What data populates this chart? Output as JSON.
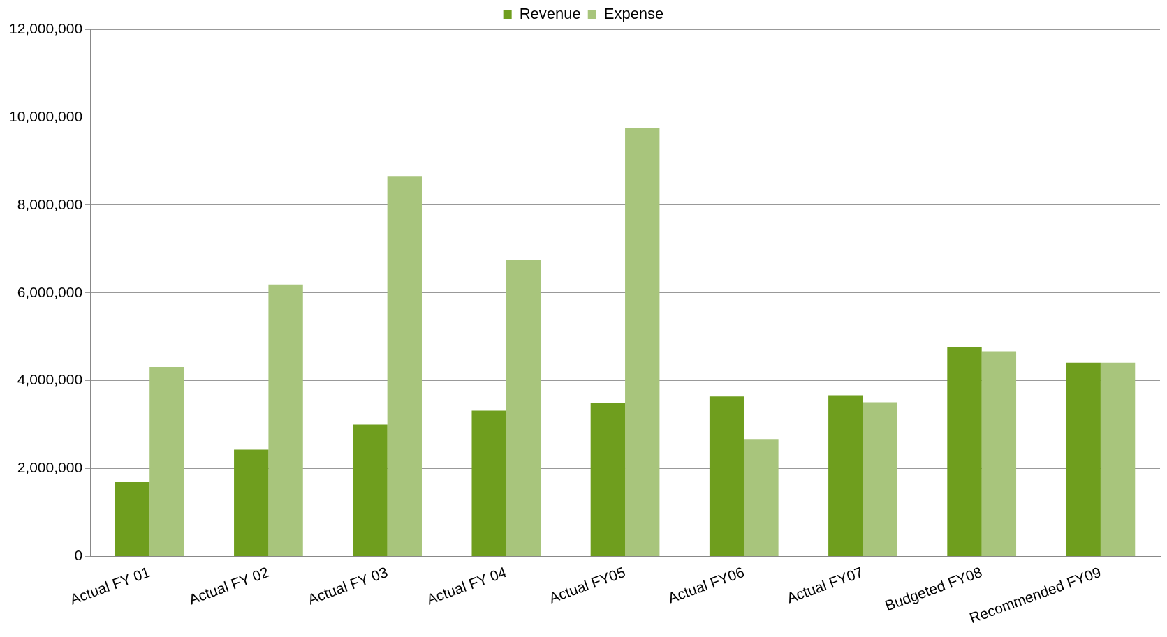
{
  "chart_data": {
    "type": "bar",
    "categories": [
      "Actual FY 01",
      "Actual FY 02",
      "Actual FY 03",
      "Actual FY 04",
      "Actual FY05",
      "Actual FY06",
      "Actual FY07",
      "Budgeted FY08",
      "Recommended FY09"
    ],
    "series": [
      {
        "name": "Revenue",
        "color": "#6f9e1e",
        "values": [
          1690000,
          2430000,
          3000000,
          3320000,
          3500000,
          3640000,
          3670000,
          4760000,
          4410000
        ]
      },
      {
        "name": "Expense",
        "color": "#a8c57c",
        "values": [
          4310000,
          6190000,
          8660000,
          6750000,
          9750000,
          2670000,
          3510000,
          4670000,
          4410000
        ]
      }
    ],
    "ylim": [
      0,
      12000000
    ],
    "yticks": [
      0,
      {
        "value": 2000000,
        "label": "2,000,000"
      },
      {
        "value": 4000000,
        "label": "4,000,000"
      },
      {
        "value": 6000000,
        "label": "6,000,000"
      },
      {
        "value": 8000000,
        "label": "8,000,000"
      },
      {
        "value": 10000000,
        "label": "10,000,000"
      },
      {
        "value": 12000000,
        "label": "12,000,000"
      }
    ],
    "grid": "y",
    "legend": "top"
  }
}
